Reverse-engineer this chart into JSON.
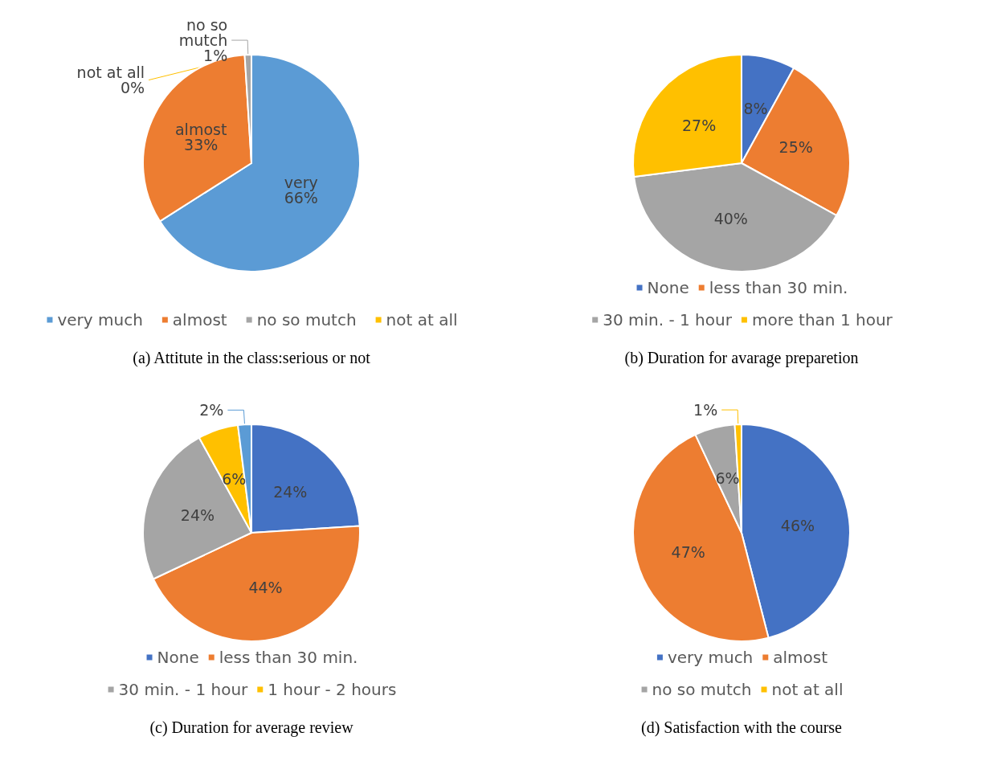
{
  "chart_data": [
    {
      "type": "pie",
      "title": "(a) Attitute in the class:serious or not",
      "categories": [
        "very much",
        "almost",
        "no so mutch",
        "not at all"
      ],
      "values": [
        66,
        33,
        1,
        0
      ],
      "colors": [
        "#5b9bd5",
        "#ed7d31",
        "#a5a5a5",
        "#ffc000"
      ],
      "value_labels": [
        "very\n66%",
        "almost\n33%",
        "no so\nmutch\n1%",
        "not at all\n0%"
      ],
      "legend": "bottom"
    },
    {
      "type": "pie",
      "title": "(b) Duration for avarage preparetion",
      "categories": [
        "None",
        "less than 30 min.",
        "30 min. - 1 hour",
        "more than 1 hour"
      ],
      "values": [
        8,
        25,
        40,
        27
      ],
      "colors": [
        "#4472c4",
        "#ed7d31",
        "#a5a5a5",
        "#ffc000"
      ],
      "value_labels": [
        "8%",
        "25%",
        "40%",
        "27%"
      ],
      "legend": "bottom"
    },
    {
      "type": "pie",
      "title": "(c) Duration for average review",
      "categories": [
        "None",
        "less than 30 min.",
        "30 min. - 1 hour",
        "1 hour - 2 hours",
        null
      ],
      "values": [
        24,
        44,
        24,
        6,
        2
      ],
      "colors": [
        "#4472c4",
        "#ed7d31",
        "#a5a5a5",
        "#ffc000",
        "#5b9bd5"
      ],
      "value_labels": [
        "24%",
        "44%",
        "24%",
        "6%",
        "2%"
      ],
      "legend": "bottom"
    },
    {
      "type": "pie",
      "title": "(d) Satisfaction with the course",
      "categories": [
        "very much",
        "almost",
        "no so mutch",
        "not at all"
      ],
      "values": [
        46,
        47,
        6,
        1
      ],
      "colors": [
        "#4472c4",
        "#ed7d31",
        "#a5a5a5",
        "#ffc000"
      ],
      "value_labels": [
        "46%",
        "47%",
        "6%",
        "1%"
      ],
      "legend": "bottom"
    }
  ]
}
